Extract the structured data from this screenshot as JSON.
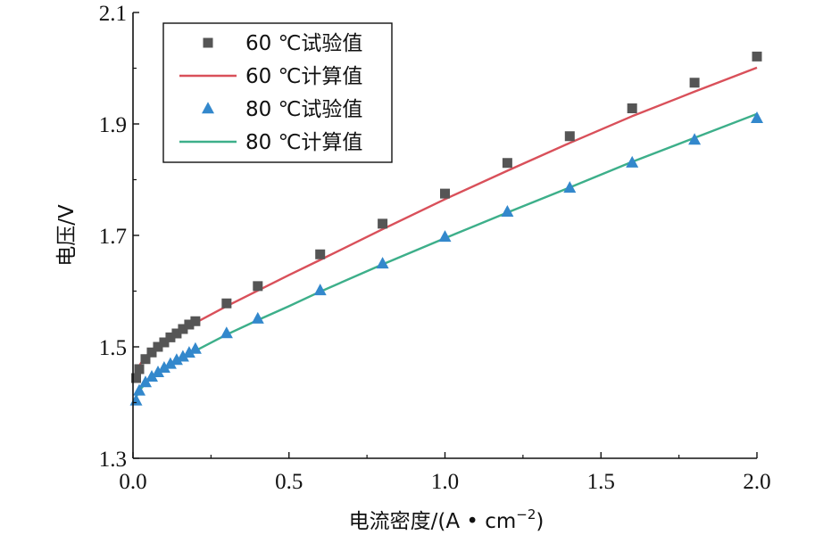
{
  "chart_data": {
    "type": "line",
    "xlabel": "电流密度/(A • cm",
    "xlabel_sup": "−2",
    "xlabel_close": ")",
    "ylabel": "电压/V",
    "xlim": [
      0.0,
      2.0
    ],
    "ylim": [
      1.3,
      2.1
    ],
    "x_ticks": [
      0.0,
      0.5,
      1.0,
      1.5,
      2.0
    ],
    "x_tick_labels": [
      "0.0",
      "0.5",
      "1.0",
      "1.5",
      "2.0"
    ],
    "y_ticks": [
      1.3,
      1.5,
      1.7,
      1.9,
      2.1
    ],
    "y_tick_labels": [
      "1.3",
      "1.5",
      "1.7",
      "1.9",
      "2.1"
    ],
    "grid": false,
    "legend_position": "top-left",
    "series": [
      {
        "name": "60 ℃试验值",
        "kind": "scatter",
        "marker": "square",
        "color": "#555555",
        "x": [
          0.01,
          0.02,
          0.04,
          0.06,
          0.08,
          0.1,
          0.12,
          0.14,
          0.16,
          0.18,
          0.2,
          0.3,
          0.4,
          0.6,
          0.8,
          1.0,
          1.2,
          1.4,
          1.6,
          1.8,
          2.0
        ],
        "y": [
          1.444,
          1.46,
          1.478,
          1.49,
          1.5,
          1.508,
          1.517,
          1.524,
          1.532,
          1.54,
          1.546,
          1.578,
          1.609,
          1.666,
          1.721,
          1.775,
          1.83,
          1.878,
          1.928,
          1.974,
          2.021
        ]
      },
      {
        "name": "60 ℃计算值",
        "kind": "line",
        "color": "#d9505a",
        "x": [
          0.005,
          0.01,
          0.02,
          0.03,
          0.05,
          0.08,
          0.1,
          0.15,
          0.2,
          0.3,
          0.4,
          0.5,
          0.6,
          0.8,
          1.0,
          1.2,
          1.4,
          1.6,
          1.8,
          2.0
        ],
        "y": [
          1.44,
          1.452,
          1.466,
          1.475,
          1.488,
          1.502,
          1.51,
          1.527,
          1.543,
          1.573,
          1.601,
          1.629,
          1.656,
          1.711,
          1.765,
          1.816,
          1.866,
          1.914,
          1.958,
          2.001
        ]
      },
      {
        "name": "80 ℃试验值",
        "kind": "scatter",
        "marker": "triangle",
        "color": "#3388cc",
        "x": [
          0.01,
          0.02,
          0.04,
          0.06,
          0.08,
          0.1,
          0.12,
          0.14,
          0.16,
          0.18,
          0.2,
          0.3,
          0.4,
          0.6,
          0.8,
          1.0,
          1.2,
          1.4,
          1.6,
          1.8,
          2.0
        ],
        "y": [
          1.403,
          1.421,
          1.436,
          1.446,
          1.454,
          1.462,
          1.469,
          1.476,
          1.482,
          1.489,
          1.496,
          1.524,
          1.55,
          1.601,
          1.649,
          1.697,
          1.742,
          1.785,
          1.83,
          1.871,
          1.91
        ]
      },
      {
        "name": "80 ℃计算值",
        "kind": "line",
        "color": "#3daf8a",
        "x": [
          0.005,
          0.01,
          0.02,
          0.03,
          0.05,
          0.08,
          0.1,
          0.15,
          0.2,
          0.3,
          0.4,
          0.5,
          0.6,
          0.8,
          1.0,
          1.2,
          1.4,
          1.6,
          1.8,
          2.0
        ],
        "y": [
          1.4,
          1.41,
          1.421,
          1.428,
          1.44,
          1.452,
          1.459,
          1.476,
          1.493,
          1.522,
          1.548,
          1.573,
          1.599,
          1.648,
          1.695,
          1.741,
          1.786,
          1.832,
          1.875,
          1.918
        ]
      }
    ]
  }
}
